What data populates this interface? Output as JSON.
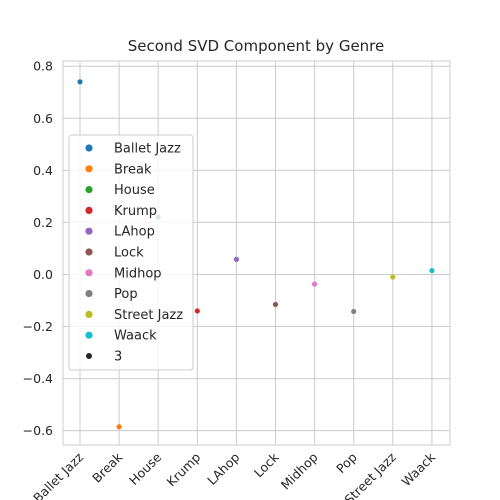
{
  "chart_data": {
    "type": "scatter",
    "title": "Second SVD Component by Genre",
    "xlabel": "",
    "ylabel": "",
    "categories": [
      "Ballet Jazz",
      "Break",
      "House",
      "Krump",
      "LAhop",
      "Lock",
      "Midhop",
      "Pop",
      "Street Jazz",
      "Waack"
    ],
    "values": [
      0.74,
      -0.585,
      0.22,
      -0.14,
      0.058,
      -0.115,
      -0.037,
      -0.142,
      -0.01,
      0.015
    ],
    "colors": [
      "#1f77b4",
      "#ff7f0e",
      "#2ca02c",
      "#d62728",
      "#9467bd",
      "#8c564b",
      "#e377c2",
      "#7f7f7f",
      "#bcbd22",
      "#17becf"
    ],
    "ylim": [
      -0.655,
      0.82
    ],
    "yticks": [
      "−0.6",
      "−0.4",
      "−0.2",
      "0.0",
      "0.2",
      "0.4",
      "0.6",
      "0.8"
    ],
    "ytick_values": [
      -0.6,
      -0.4,
      -0.2,
      0.0,
      0.2,
      0.4,
      0.6,
      0.8
    ],
    "grid": true,
    "legend": {
      "placement": "center-left",
      "entries": [
        "Ballet Jazz",
        "Break",
        "House",
        "Krump",
        "LAhop",
        "Lock",
        "Midhop",
        "Pop",
        "Street Jazz",
        "Waack"
      ],
      "size_entry": "3"
    }
  }
}
